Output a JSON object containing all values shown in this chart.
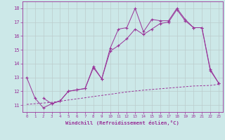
{
  "xlabel": "Windchill (Refroidissement éolien,°C)",
  "background_color": "#cce8e8",
  "line_color": "#993399",
  "grid_color": "#bbcccc",
  "xlim": [
    -0.5,
    23.5
  ],
  "ylim": [
    10.5,
    18.5
  ],
  "xtick_labels": [
    "0",
    "1",
    "2",
    "3",
    "4",
    "5",
    "6",
    "7",
    "8",
    "9",
    "10",
    "11",
    "12",
    "13",
    "14",
    "15",
    "16",
    "17",
    "18",
    "19",
    "20",
    "21",
    "22",
    "23"
  ],
  "ytick_labels": [
    "11",
    "12",
    "13",
    "14",
    "15",
    "16",
    "17",
    "18"
  ],
  "ytick_vals": [
    11,
    12,
    13,
    14,
    15,
    16,
    17,
    18
  ],
  "line1_x": [
    0,
    1,
    2,
    3,
    4,
    5,
    6,
    7,
    8,
    9,
    10,
    11,
    12,
    13,
    14,
    15,
    16,
    17,
    18,
    19,
    20,
    21,
    22,
    23
  ],
  "line1_y": [
    13.0,
    11.5,
    10.8,
    11.1,
    11.3,
    12.0,
    12.1,
    12.2,
    13.8,
    12.9,
    15.1,
    16.5,
    16.6,
    18.0,
    16.3,
    17.2,
    17.1,
    17.1,
    18.0,
    17.2,
    16.6,
    16.6,
    13.6,
    12.6
  ],
  "line2_x": [
    2,
    3,
    4,
    5,
    6,
    7,
    8,
    9,
    10,
    11,
    12,
    13,
    14,
    15,
    16,
    17,
    18,
    19,
    20,
    21,
    22,
    23
  ],
  "line2_y": [
    11.5,
    11.1,
    11.3,
    12.0,
    12.1,
    12.2,
    13.7,
    12.9,
    14.9,
    15.3,
    15.8,
    16.5,
    16.1,
    16.5,
    16.9,
    17.0,
    17.9,
    17.1,
    16.6,
    16.6,
    13.5,
    12.6
  ],
  "line3_x": [
    0,
    1,
    2,
    3,
    4,
    5,
    6,
    7,
    8,
    9,
    10,
    11,
    12,
    13,
    14,
    15,
    16,
    17,
    18,
    19,
    20,
    21,
    22,
    23
  ],
  "line3_y": [
    11.05,
    11.1,
    11.15,
    11.2,
    11.28,
    11.37,
    11.45,
    11.53,
    11.62,
    11.7,
    11.78,
    11.87,
    11.95,
    12.02,
    12.08,
    12.13,
    12.18,
    12.23,
    12.28,
    12.33,
    12.38,
    12.4,
    12.42,
    12.5
  ]
}
